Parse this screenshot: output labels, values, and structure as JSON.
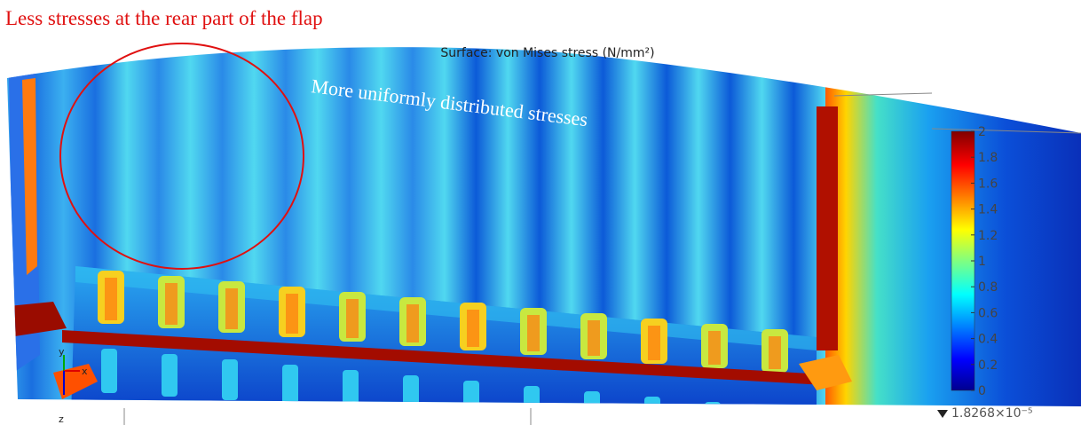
{
  "annotations": {
    "top_left": "Less stresses at the rear part of the flap",
    "center": "More uniformly distributed stresses"
  },
  "plot": {
    "title": "Surface: von Mises stress (N/mm²)",
    "colorbar": {
      "ticks": [
        0,
        0.2,
        0.4,
        0.6,
        0.8,
        1,
        1.2,
        1.4,
        1.6,
        1.8,
        2
      ],
      "range": [
        0,
        2
      ],
      "min_label": "1.8268×10⁻⁵"
    },
    "axes_triad": {
      "x": "x",
      "y": "y",
      "z": "z"
    }
  }
}
